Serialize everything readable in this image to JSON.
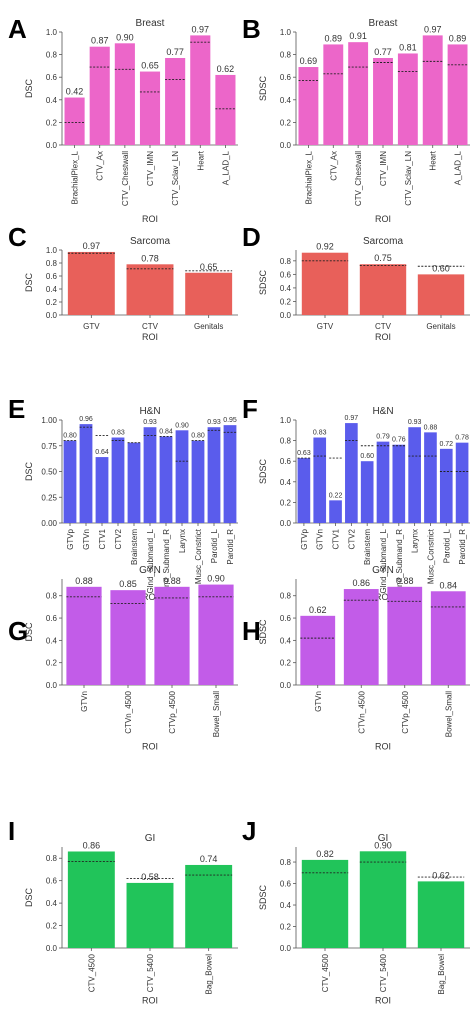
{
  "chart_data": [
    {
      "panel": "A",
      "type": "bar",
      "title": "Breast",
      "ylabel": "DSC",
      "xlabel": "ROI",
      "ylim": [
        0,
        1.0
      ],
      "yticks": [
        0.0,
        0.2,
        0.4,
        0.6,
        0.8,
        1.0
      ],
      "color": "#ec66c9",
      "categories": [
        "BrachialPlex_L",
        "CTV_Ax",
        "CTV_Chestwall",
        "CTV_IMN",
        "CTV_Sclav_LN",
        "Heart",
        "A_LAD_L"
      ],
      "values": [
        0.42,
        0.87,
        0.9,
        0.65,
        0.77,
        0.97,
        0.62
      ],
      "value_labels": [
        "0.42",
        "0.87",
        "0.90",
        "0.65",
        "0.77",
        "0.97",
        "0.62"
      ],
      "reference": [
        0.2,
        0.69,
        0.67,
        0.47,
        0.58,
        0.91,
        0.32
      ]
    },
    {
      "panel": "B",
      "type": "bar",
      "title": "Breast",
      "ylabel": "SDSC",
      "xlabel": "ROI",
      "ylim": [
        0,
        1.0
      ],
      "yticks": [
        0.0,
        0.2,
        0.4,
        0.6,
        0.8,
        1.0
      ],
      "color": "#ec66c9",
      "categories": [
        "BrachialPlex_L",
        "CTV_Ax",
        "CTV_Chestwall",
        "CTV_IMN",
        "CTV_Sclav_LN",
        "Heart",
        "A_LAD_L"
      ],
      "values": [
        0.69,
        0.89,
        0.91,
        0.77,
        0.81,
        0.97,
        0.89
      ],
      "value_labels": [
        "0.69",
        "0.89",
        "0.91",
        "0.77",
        "0.81",
        "0.97",
        "0.89"
      ],
      "reference": [
        0.57,
        0.63,
        0.69,
        0.73,
        0.65,
        0.74,
        0.71
      ]
    },
    {
      "panel": "C",
      "type": "bar",
      "title": "Sarcoma",
      "ylabel": "DSC",
      "xlabel": "ROI",
      "ylim": [
        0,
        1.0
      ],
      "yticks": [
        0.0,
        0.2,
        0.4,
        0.6,
        0.8,
        1.0
      ],
      "color": "#e8605a",
      "categories": [
        "GTV",
        "CTV",
        "Genitals"
      ],
      "values": [
        0.97,
        0.78,
        0.65
      ],
      "value_labels": [
        "0.97",
        "0.78",
        "0.65"
      ],
      "reference": [
        0.95,
        0.71,
        0.68
      ]
    },
    {
      "panel": "D",
      "type": "bar",
      "title": "Sarcoma",
      "ylabel": "SDSC",
      "xlabel": "ROI",
      "ylim": [
        0,
        0.96
      ],
      "yticks": [
        0.0,
        0.2,
        0.4,
        0.6,
        0.8
      ],
      "color": "#e8605a",
      "categories": [
        "GTV",
        "CTV",
        "Genitals"
      ],
      "values": [
        0.92,
        0.75,
        0.6
      ],
      "value_labels": [
        "0.92",
        "0.75",
        "0.60"
      ],
      "reference": [
        0.8,
        0.73,
        0.72
      ]
    },
    {
      "panel": "E",
      "type": "bar",
      "title": "H&N",
      "ylabel": "DSC",
      "xlabel": "ROI",
      "ylim": [
        0,
        1.0
      ],
      "yticks": [
        0.0,
        0.25,
        0.5,
        0.75,
        1.0
      ],
      "ytick_labels": [
        "0.00",
        "0.25",
        "0.50",
        "0.75",
        "1.00"
      ],
      "color": "#5a5cec",
      "categories": [
        "GTVp",
        "GTVn",
        "CTV1",
        "CTV2",
        "Brainstem",
        "Glnd_Submand_L",
        "Glnd_Submand_R",
        "Larynx",
        "Musc_Constrict",
        "Parotid_L",
        "Parotid_R"
      ],
      "values": [
        0.8,
        0.96,
        0.64,
        0.83,
        0.78,
        0.93,
        0.84,
        0.9,
        0.8,
        0.93,
        0.95
      ],
      "value_labels": [
        "0.80",
        "0.96",
        "0.64",
        "0.83",
        "",
        "0.93",
        "0.84",
        "0.90",
        "0.80",
        "0.93",
        "0.95"
      ],
      "reference": [
        0.8,
        0.93,
        0.85,
        0.8,
        0.78,
        0.85,
        0.84,
        0.6,
        0.8,
        0.9,
        0.88
      ]
    },
    {
      "panel": "F",
      "type": "bar",
      "title": "H&N",
      "ylabel": "SDSC",
      "xlabel": "ROI",
      "ylim": [
        0,
        1.0
      ],
      "yticks": [
        0.0,
        0.2,
        0.4,
        0.6,
        0.8,
        1.0
      ],
      "color": "#5a5cec",
      "categories": [
        "GTVp",
        "GTVn",
        "CTV1",
        "CTV2",
        "Brainstem",
        "Glnd_Submand_L",
        "Glnd_Submand_R",
        "Larynx",
        "Musc_Constrict",
        "Parotid_L",
        "Parotid_R"
      ],
      "values": [
        0.63,
        0.83,
        0.22,
        0.97,
        0.6,
        0.79,
        0.76,
        0.93,
        0.88,
        0.72,
        0.78
      ],
      "value_labels": [
        "0.63",
        "0.83",
        "0.22",
        "0.97",
        "0.60",
        "0.79",
        "0.76",
        "0.93",
        "0.88",
        "0.72",
        "0.78"
      ],
      "reference": [
        0.63,
        0.65,
        0.63,
        0.8,
        0.75,
        0.75,
        0.75,
        0.65,
        0.65,
        0.5,
        0.5
      ]
    },
    {
      "panel": "G",
      "type": "bar",
      "title": "GYN",
      "ylabel": "DSC",
      "xlabel": "ROI",
      "ylim": [
        0,
        0.95
      ],
      "yticks": [
        0.0,
        0.2,
        0.4,
        0.6,
        0.8
      ],
      "color": "#c25ce8",
      "categories": [
        "GTVn",
        "CTVn_4500",
        "CTVp_4500",
        "Bowel_Small"
      ],
      "values": [
        0.88,
        0.85,
        0.88,
        0.9
      ],
      "value_labels": [
        "0.88",
        "0.85",
        "0.88",
        "0.90"
      ],
      "reference": [
        0.79,
        0.73,
        0.78,
        0.79
      ]
    },
    {
      "panel": "H",
      "type": "bar",
      "title": "GYN",
      "ylabel": "SDSC",
      "xlabel": "ROI",
      "ylim": [
        0,
        0.95
      ],
      "yticks": [
        0.0,
        0.2,
        0.4,
        0.6,
        0.8
      ],
      "color": "#c25ce8",
      "categories": [
        "GTVn",
        "CTVn_4500",
        "CTVp_4500",
        "Bowel_Small"
      ],
      "values": [
        0.62,
        0.86,
        0.88,
        0.84
      ],
      "value_labels": [
        "0.62",
        "0.86",
        "0.88",
        "0.84"
      ],
      "reference": [
        0.42,
        0.76,
        0.75,
        0.7
      ]
    },
    {
      "panel": "I",
      "type": "bar",
      "title": "GI",
      "ylabel": "DSC",
      "xlabel": "ROI",
      "ylim": [
        0,
        0.9
      ],
      "yticks": [
        0.0,
        0.2,
        0.4,
        0.6,
        0.8
      ],
      "color": "#21c45a",
      "categories": [
        "CTV_4500",
        "CTV_5400",
        "Bag_Bowel"
      ],
      "values": [
        0.86,
        0.58,
        0.74
      ],
      "value_labels": [
        "0.86",
        "0.58",
        "0.74"
      ],
      "reference": [
        0.77,
        0.62,
        0.65
      ]
    },
    {
      "panel": "J",
      "type": "bar",
      "title": "GI",
      "ylabel": "SDSC",
      "xlabel": "ROI",
      "ylim": [
        0,
        0.94
      ],
      "yticks": [
        0.0,
        0.2,
        0.4,
        0.6,
        0.8
      ],
      "color": "#21c45a",
      "categories": [
        "CTV_4500",
        "CTV_5400",
        "Bag_Bowel"
      ],
      "values": [
        0.82,
        0.9,
        0.62
      ],
      "value_labels": [
        "0.82",
        "0.90",
        "0.62"
      ],
      "reference": [
        0.7,
        0.8,
        0.66
      ]
    }
  ]
}
